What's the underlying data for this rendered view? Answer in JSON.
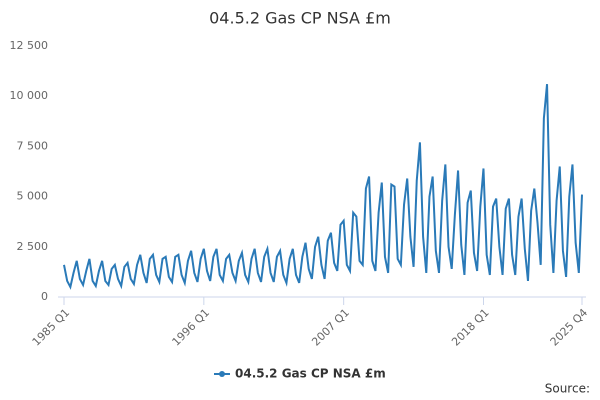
{
  "chart_data": {
    "type": "line",
    "title": "04.5.2 Gas CP NSA £m",
    "categories": [
      "1985 Q1",
      null,
      null,
      null,
      null,
      null,
      null,
      null,
      null,
      null,
      null,
      null,
      null,
      null,
      null,
      null,
      null,
      null,
      null,
      null,
      null,
      null,
      null,
      null,
      null,
      null,
      null,
      null,
      null,
      null,
      null,
      null,
      null,
      null,
      null,
      null,
      null,
      null,
      null,
      null,
      null,
      null,
      null,
      null,
      "1996 Q1",
      null,
      null,
      null,
      null,
      null,
      null,
      null,
      null,
      null,
      null,
      null,
      null,
      null,
      null,
      null,
      null,
      null,
      null,
      null,
      null,
      null,
      null,
      null,
      null,
      null,
      null,
      null,
      null,
      null,
      null,
      null,
      null,
      null,
      null,
      null,
      null,
      null,
      null,
      null,
      null,
      null,
      null,
      null,
      "2007 Q1",
      null,
      null,
      null,
      null,
      null,
      null,
      null,
      null,
      null,
      null,
      null,
      null,
      null,
      null,
      null,
      null,
      null,
      null,
      null,
      null,
      null,
      null,
      null,
      null,
      null,
      null,
      null,
      null,
      null,
      null,
      null,
      null,
      null,
      null,
      null,
      null,
      null,
      null,
      null,
      null,
      null,
      null,
      null,
      "2018 Q1",
      null,
      null,
      null,
      null,
      null,
      null,
      null,
      null,
      null,
      null,
      null,
      null,
      null,
      null,
      null,
      null,
      null,
      null,
      null,
      null,
      null,
      null,
      null,
      null,
      null,
      null,
      null,
      null,
      null,
      null,
      "2025 Q4"
    ],
    "series": [
      {
        "name": "04.5.2 Gas CP NSA £m",
        "color": "#2a7ab8",
        "values": [
          1600,
          800,
          500,
          1200,
          1800,
          900,
          600,
          1300,
          1900,
          800,
          550,
          1300,
          1800,
          800,
          600,
          1400,
          1600,
          900,
          550,
          1500,
          1700,
          900,
          650,
          1600,
          2100,
          1200,
          700,
          1900,
          2100,
          1100,
          750,
          1900,
          2000,
          1000,
          750,
          2000,
          2100,
          1100,
          700,
          1800,
          2300,
          1200,
          750,
          1900,
          2400,
          1300,
          800,
          2000,
          2400,
          1100,
          800,
          1900,
          2100,
          1200,
          800,
          1800,
          2200,
          1100,
          750,
          1900,
          2400,
          1200,
          750,
          2000,
          2400,
          1200,
          750,
          2000,
          2300,
          1100,
          700,
          1900,
          2400,
          1100,
          700,
          2000,
          2700,
          1400,
          900,
          2500,
          3000,
          1600,
          900,
          2800,
          3200,
          1700,
          1300,
          3600,
          3800,
          1600,
          1300,
          4200,
          4000,
          1800,
          1600,
          5400,
          6000,
          1800,
          1300,
          4200,
          5700,
          2000,
          1200,
          5600,
          5500,
          1900,
          1600,
          4600,
          5900,
          3000,
          1500,
          5800,
          7700,
          3000,
          1200,
          5000,
          6000,
          2300,
          1200,
          4800,
          6600,
          2500,
          1400,
          4100,
          6300,
          2600,
          1100,
          4700,
          5300,
          2200,
          1300,
          4500,
          6400,
          2100,
          1100,
          4500,
          4900,
          2500,
          1100,
          4400,
          4900,
          2100,
          1100,
          4000,
          4900,
          2400,
          800,
          4300,
          5400,
          3700,
          1600,
          8900,
          10600,
          3600,
          1200,
          4800,
          6500,
          2300,
          1000,
          5000,
          6600,
          2700,
          1200,
          5100
        ]
      }
    ],
    "ylim": [
      0,
      12500
    ],
    "yticks": [
      0,
      {
        "value": 2500,
        "label": "2 500"
      },
      {
        "value": 5000,
        "label": "5 000"
      },
      {
        "value": 7500,
        "label": "7 500"
      },
      {
        "value": 10000,
        "label": "10 000"
      },
      {
        "value": 12500,
        "label": "12 500"
      }
    ],
    "grid": false,
    "source": "Source:"
  }
}
